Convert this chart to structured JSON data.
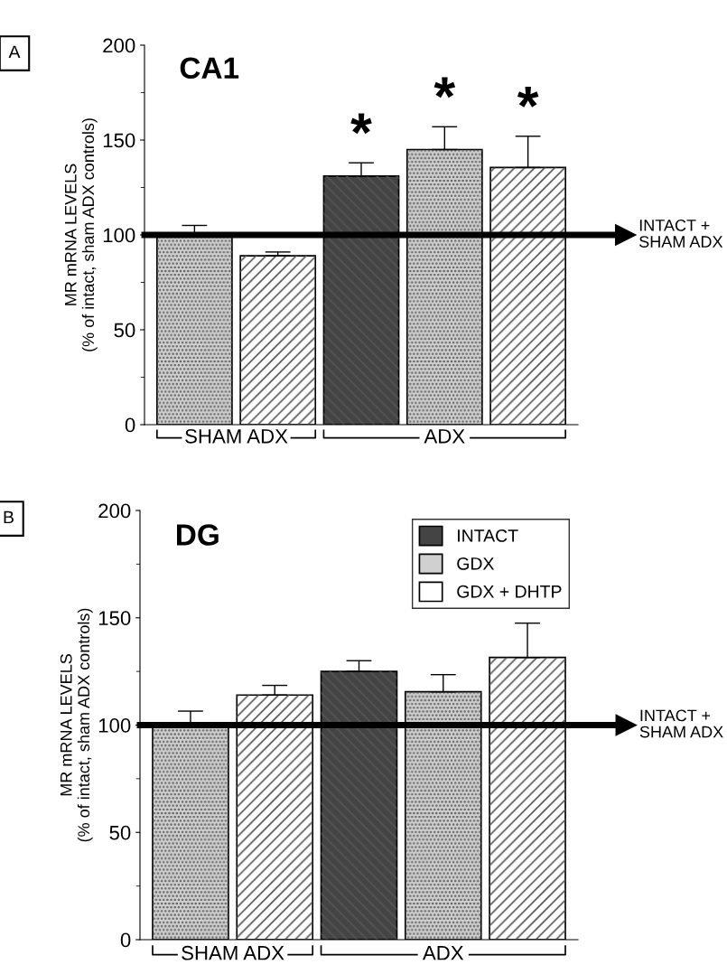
{
  "chart_data": [
    {
      "type": "bar",
      "title": "CA1",
      "ylabel": "MR mRNA LEVELS\n(% of intact, sham ADX controls)",
      "categories": [
        null,
        null,
        null,
        null,
        null
      ],
      "ylim": [
        0,
        200
      ],
      "yticks": [
        0,
        50,
        100,
        150,
        200
      ],
      "grid": false,
      "series": [
        {
          "color": "#444444",
          "values": [
            null,
            null,
            131,
            null,
            null
          ],
          "errors": [
            null,
            null,
            [
              131,
              138
            ],
            null,
            null
          ],
          "value_labels": [
            null,
            null,
            "*",
            null,
            null
          ]
        },
        {
          "color": "#d0d0d0",
          "values": [
            100,
            null,
            null,
            145,
            null
          ],
          "errors": [
            [
              100,
              105
            ],
            null,
            null,
            [
              145,
              157
            ],
            null
          ],
          "value_labels": [
            null,
            null,
            null,
            "*",
            null
          ]
        },
        {
          "color": "#ffffff",
          "values": [
            null,
            89,
            null,
            null,
            135.5
          ],
          "errors": [
            null,
            [
              89,
              91
            ],
            null,
            null,
            [
              135.5,
              152
            ]
          ],
          "value_labels": [
            null,
            null,
            null,
            null,
            "*"
          ]
        }
      ],
      "ref_lines": [
        {
          "axis": "y",
          "value": 100,
          "label": "INTACT +\nSHAM ADX"
        }
      ],
      "annotations": [
        "A",
        "SHAM ADX",
        "ADX"
      ]
    },
    {
      "type": "bar",
      "title": "DG",
      "ylabel": "MR mRNA LEVELS\n(% of intact, sham ADX controls)",
      "categories": [
        null,
        null,
        null,
        null,
        null
      ],
      "ylim": [
        0,
        200
      ],
      "yticks": [
        0,
        50,
        100,
        150,
        200
      ],
      "grid": false,
      "legend": "top right",
      "series": [
        {
          "name": "INTACT",
          "color": "#444444",
          "values": [
            null,
            null,
            125,
            null,
            null
          ],
          "errors": [
            null,
            null,
            [
              125,
              130
            ],
            null,
            null
          ]
        },
        {
          "name": "GDX",
          "color": "#d0d0d0",
          "values": [
            100,
            null,
            null,
            115.5,
            null
          ],
          "errors": [
            [
              100,
              106.5
            ],
            null,
            null,
            [
              115.5,
              123.5
            ],
            null
          ]
        },
        {
          "name": "GDX + DHTP",
          "color": "#ffffff",
          "values": [
            null,
            114,
            null,
            null,
            131.5
          ],
          "errors": [
            null,
            [
              114,
              118.5
            ],
            null,
            null,
            [
              131.5,
              147.5
            ]
          ]
        }
      ],
      "ref_lines": [
        {
          "axis": "y",
          "value": 100,
          "label": "INTACT +\nSHAM ADX"
        }
      ],
      "annotations": [
        "B",
        "SHAM ADX",
        "ADX"
      ]
    }
  ]
}
